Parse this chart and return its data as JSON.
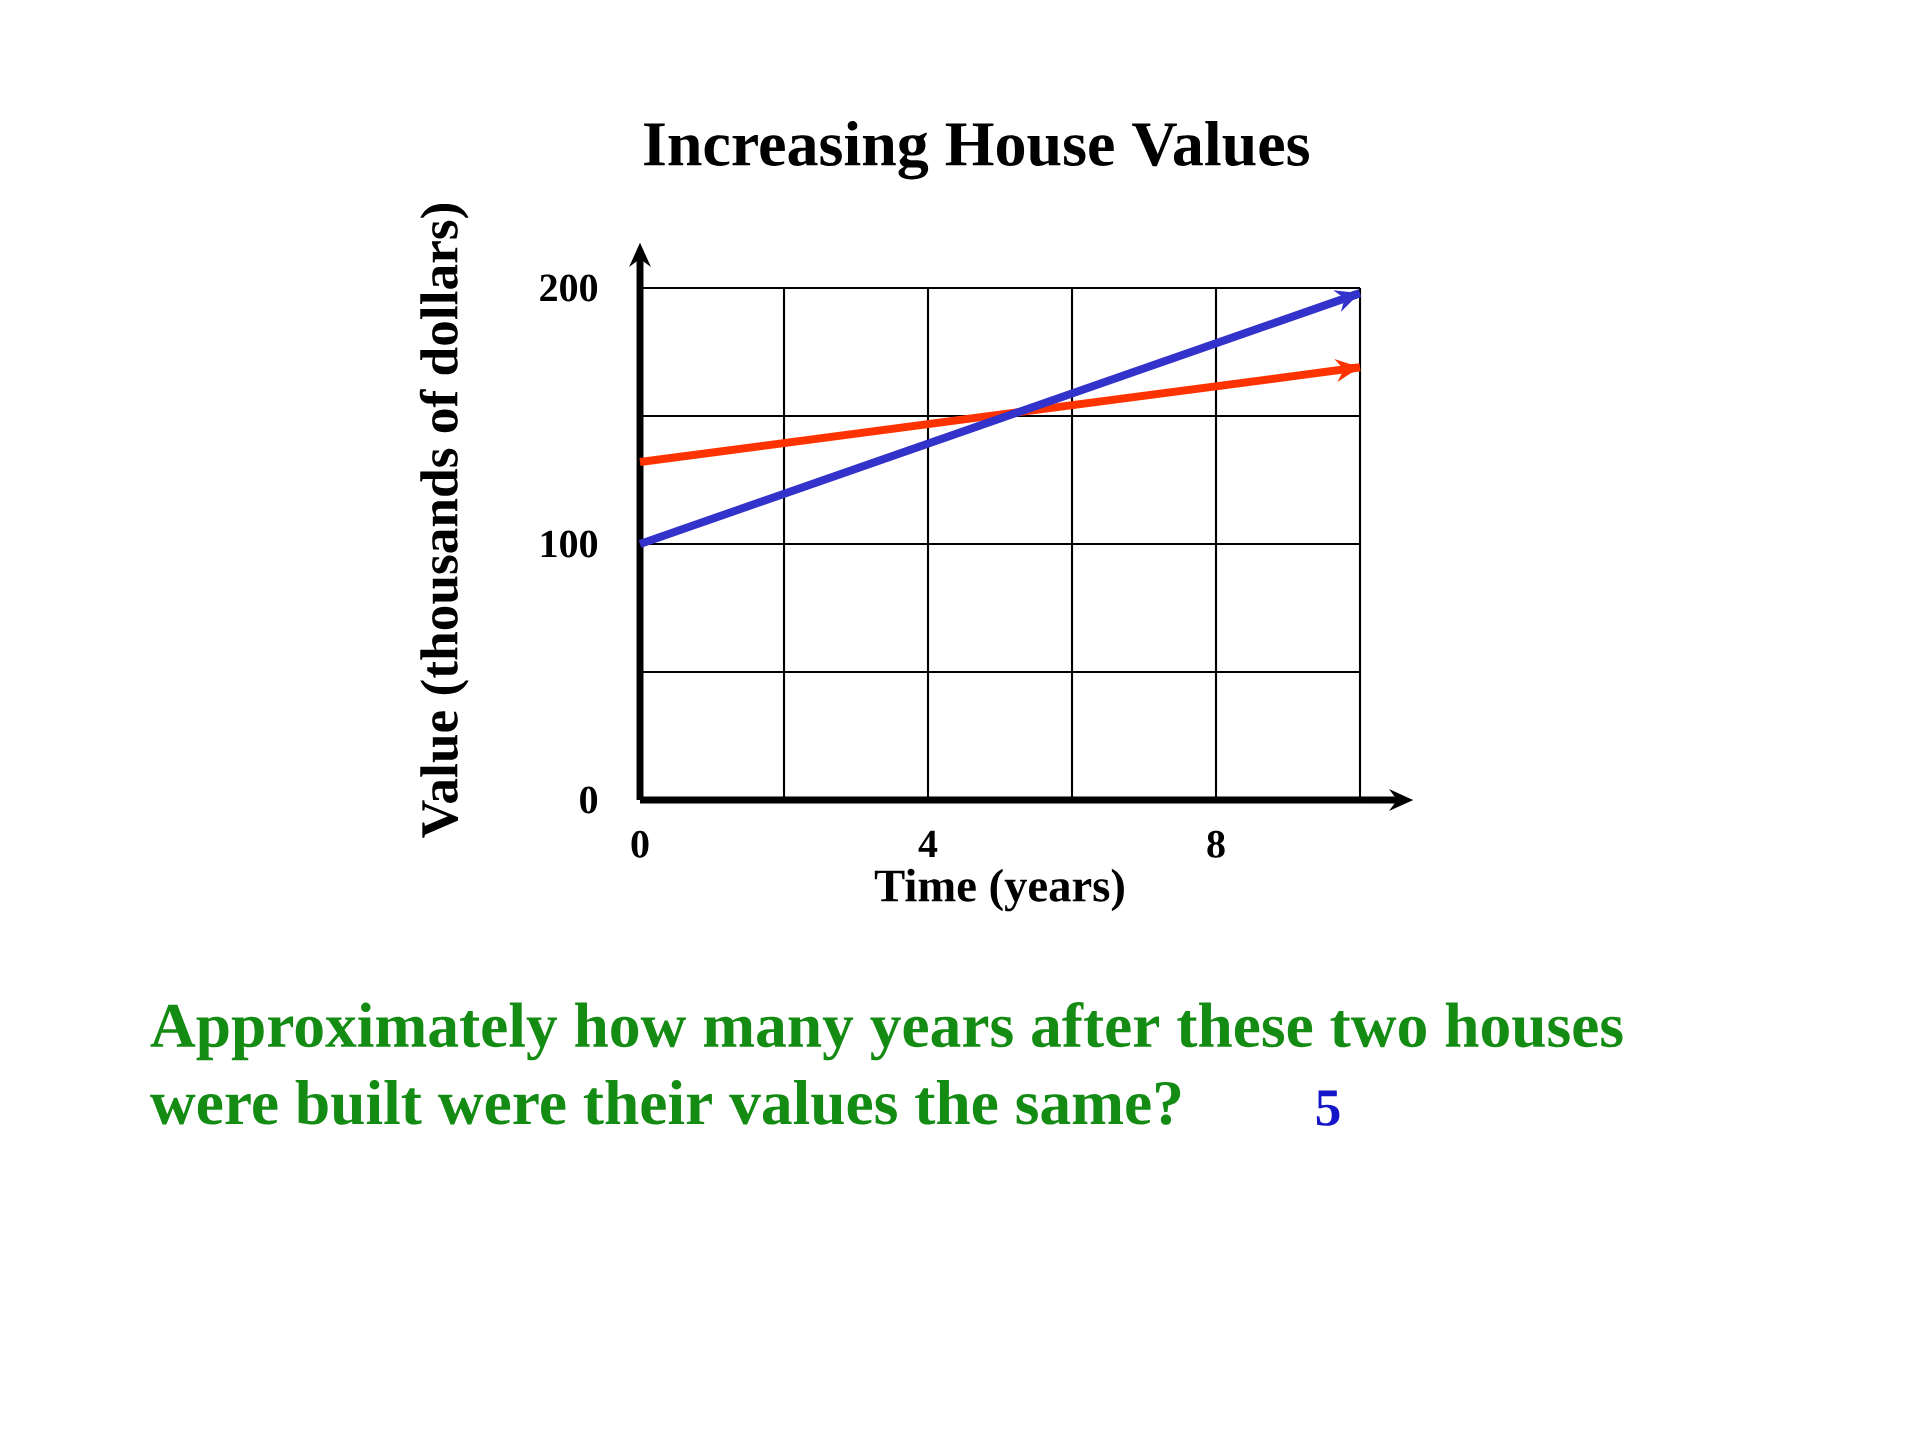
{
  "chart_data": {
    "type": "line",
    "title": "Increasing House Values",
    "xlabel": "Time (years)",
    "ylabel": "Value (thousands of dollars)",
    "x": [
      0,
      10
    ],
    "series": [
      {
        "color": "#ff3300",
        "values": [
          132,
          169
        ]
      },
      {
        "color": "#3333cc",
        "values": [
          100,
          198
        ]
      }
    ],
    "xlim": [
      0,
      10
    ],
    "ylim": [
      0,
      200
    ],
    "xticks": [
      0,
      {
        "value": 2,
        "label": null
      },
      4,
      {
        "value": 6,
        "label": null
      },
      8,
      {
        "value": 10,
        "label": null
      }
    ],
    "yticks": [
      0,
      {
        "value": 50,
        "label": null
      },
      100,
      {
        "value": 150,
        "label": null
      },
      200
    ],
    "grid": true,
    "marker": "none",
    "line_style": "solid",
    "annotations": [
      "Approximately how many years after these two houses",
      "were built were their values the same?",
      "5"
    ]
  }
}
